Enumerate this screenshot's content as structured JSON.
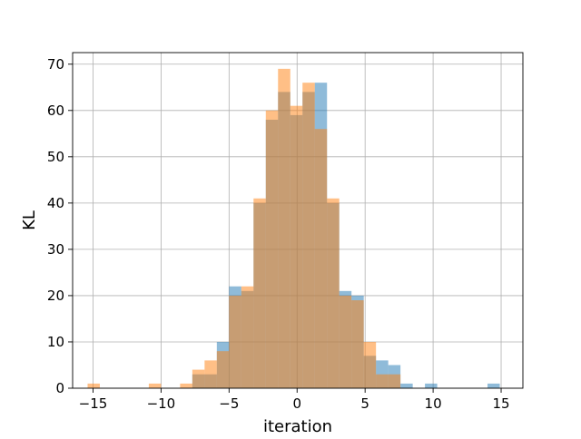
{
  "chart_data": {
    "type": "bar",
    "subtype": "histogram",
    "title": "",
    "xlabel": "iteration",
    "ylabel": "KL",
    "xlim": [
      -16.5,
      16.6
    ],
    "ylim": [
      0,
      72.5
    ],
    "xticks": [
      -15,
      -10,
      -5,
      0,
      5,
      10,
      15
    ],
    "yticks": [
      0,
      10,
      20,
      30,
      40,
      50,
      60,
      70
    ],
    "grid": true,
    "legend": "none",
    "bin_width": 0.9,
    "series": [
      {
        "color": "#1f77b4",
        "opacity": 0.5,
        "bins": [
          {
            "x0": -7.7,
            "value": 3
          },
          {
            "x0": -6.8,
            "value": 3
          },
          {
            "x0": -5.9,
            "value": 10
          },
          {
            "x0": -5.0,
            "value": 22
          },
          {
            "x0": -4.1,
            "value": 21
          },
          {
            "x0": -3.2,
            "value": 40
          },
          {
            "x0": -2.3,
            "value": 58
          },
          {
            "x0": -1.4,
            "value": 64
          },
          {
            "x0": -0.5,
            "value": 59
          },
          {
            "x0": 0.4,
            "value": 64
          },
          {
            "x0": 1.3,
            "value": 66
          },
          {
            "x0": 2.2,
            "value": 40
          },
          {
            "x0": 3.1,
            "value": 21
          },
          {
            "x0": 4.0,
            "value": 20
          },
          {
            "x0": 4.9,
            "value": 7
          },
          {
            "x0": 5.8,
            "value": 6
          },
          {
            "x0": 6.7,
            "value": 5
          },
          {
            "x0": 7.6,
            "value": 1
          },
          {
            "x0": 9.4,
            "value": 1
          },
          {
            "x0": 14.0,
            "value": 1
          }
        ]
      },
      {
        "color": "#ff7f0e",
        "opacity": 0.5,
        "bins": [
          {
            "x0": -15.4,
            "value": 1
          },
          {
            "x0": -10.9,
            "value": 1
          },
          {
            "x0": -8.6,
            "value": 1
          },
          {
            "x0": -7.7,
            "value": 4
          },
          {
            "x0": -6.8,
            "value": 6
          },
          {
            "x0": -5.9,
            "value": 8
          },
          {
            "x0": -5.0,
            "value": 20
          },
          {
            "x0": -4.1,
            "value": 22
          },
          {
            "x0": -3.2,
            "value": 41
          },
          {
            "x0": -2.3,
            "value": 60
          },
          {
            "x0": -1.4,
            "value": 69
          },
          {
            "x0": -0.5,
            "value": 61
          },
          {
            "x0": 0.4,
            "value": 66
          },
          {
            "x0": 1.3,
            "value": 56
          },
          {
            "x0": 2.2,
            "value": 41
          },
          {
            "x0": 3.1,
            "value": 20
          },
          {
            "x0": 4.0,
            "value": 19
          },
          {
            "x0": 4.9,
            "value": 10
          },
          {
            "x0": 5.8,
            "value": 3
          },
          {
            "x0": 6.7,
            "value": 3
          }
        ]
      }
    ]
  }
}
